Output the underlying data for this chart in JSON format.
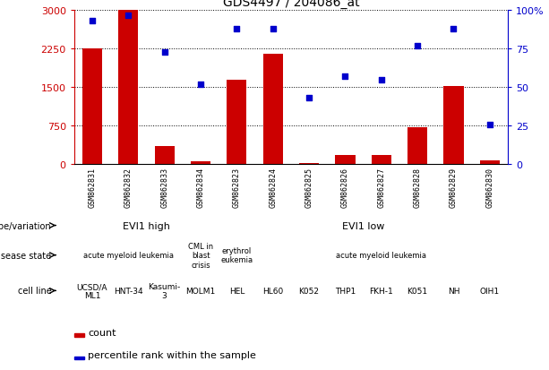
{
  "title": "GDS4497 / 204086_at",
  "samples": [
    "GSM862831",
    "GSM862832",
    "GSM862833",
    "GSM862834",
    "GSM862823",
    "GSM862824",
    "GSM862825",
    "GSM862826",
    "GSM862827",
    "GSM862828",
    "GSM862829",
    "GSM862830"
  ],
  "counts": [
    2250,
    3000,
    350,
    50,
    1650,
    2150,
    30,
    175,
    175,
    720,
    1530,
    75
  ],
  "percentiles": [
    93,
    97,
    73,
    52,
    88,
    88,
    43,
    57,
    55,
    77,
    88,
    26
  ],
  "ylim_left": [
    0,
    3000
  ],
  "ylim_right": [
    0,
    100
  ],
  "yticks_left": [
    0,
    750,
    1500,
    2250,
    3000
  ],
  "yticks_right": [
    0,
    25,
    50,
    75,
    100
  ],
  "bar_color": "#cc0000",
  "dot_color": "#0000cc",
  "plot_bg": "#ffffff",
  "fig_bg": "#ffffff",
  "xtick_box_color": "#c0c0c0",
  "genotype_groups": [
    {
      "label": "EVI1 high",
      "start": 0,
      "end": 4,
      "color": "#99dd77"
    },
    {
      "label": "EVI1 low",
      "start": 4,
      "end": 12,
      "color": "#55cc55"
    }
  ],
  "disease_groups": [
    {
      "label": "acute myeloid leukemia",
      "start": 0,
      "end": 3,
      "color": "#9999dd"
    },
    {
      "label": "CML in\nblast\ncrisis",
      "start": 3,
      "end": 4,
      "color": "#bbbbee"
    },
    {
      "label": "erythrol\neukemia",
      "start": 4,
      "end": 5,
      "color": "#bbbbee"
    },
    {
      "label": "acute myeloid leukemia",
      "start": 5,
      "end": 12,
      "color": "#9999dd"
    }
  ],
  "cell_lines": [
    {
      "label": "UCSD/A\nML1",
      "start": 0,
      "end": 1,
      "color": "#dd9988"
    },
    {
      "label": "HNT-34",
      "start": 1,
      "end": 2,
      "color": "#dd9988"
    },
    {
      "label": "Kasumi-\n3",
      "start": 2,
      "end": 3,
      "color": "#dd9988"
    },
    {
      "label": "MOLM1",
      "start": 3,
      "end": 4,
      "color": "#dd9988"
    },
    {
      "label": "HEL",
      "start": 4,
      "end": 5,
      "color": "#f0b8a8"
    },
    {
      "label": "HL60",
      "start": 5,
      "end": 6,
      "color": "#f0b8a8"
    },
    {
      "label": "K052",
      "start": 6,
      "end": 7,
      "color": "#f0b8a8"
    },
    {
      "label": "THP1",
      "start": 7,
      "end": 8,
      "color": "#f0b8a8"
    },
    {
      "label": "FKH-1",
      "start": 8,
      "end": 9,
      "color": "#f0b8a8"
    },
    {
      "label": "K051",
      "start": 9,
      "end": 10,
      "color": "#f0b8a8"
    },
    {
      "label": "NH",
      "start": 10,
      "end": 11,
      "color": "#f0b8a8"
    },
    {
      "label": "OIH1",
      "start": 11,
      "end": 12,
      "color": "#f0b8a8"
    }
  ],
  "row_labels": [
    "genotype/variation",
    "disease state",
    "cell line"
  ],
  "legend_items": [
    {
      "label": "count",
      "color": "#cc0000"
    },
    {
      "label": "percentile rank within the sample",
      "color": "#0000cc"
    }
  ]
}
